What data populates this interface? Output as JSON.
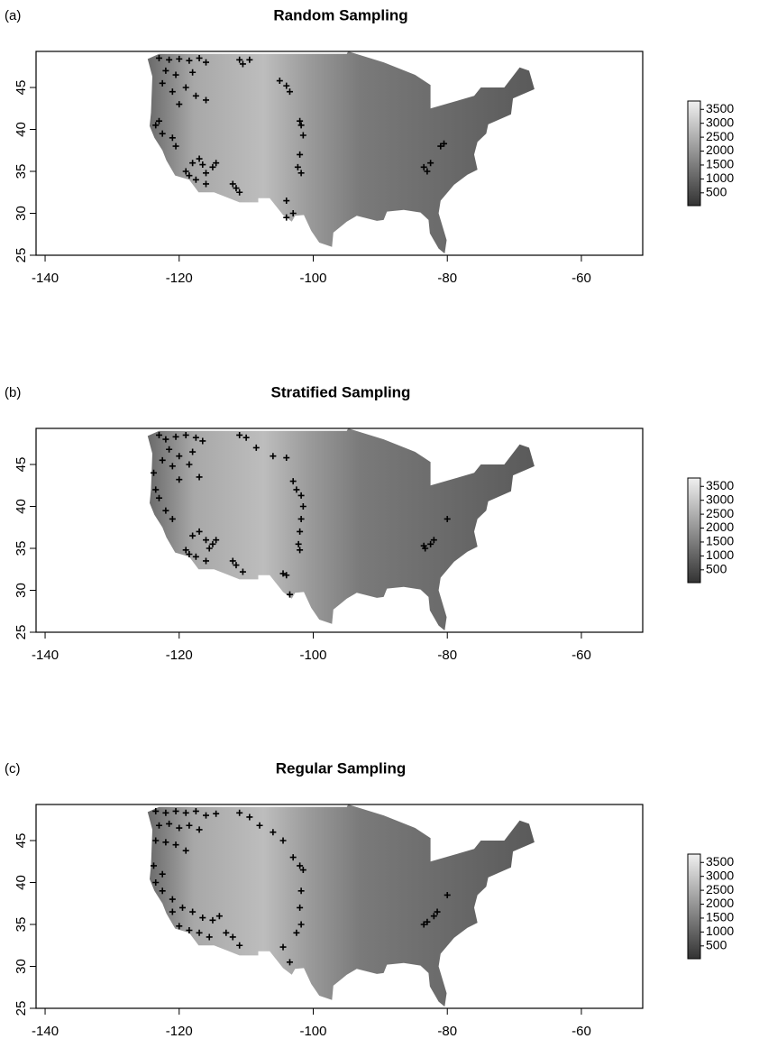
{
  "chart_data": [
    {
      "type": "scatter",
      "panel_label": "(a)",
      "title": "Random Sampling",
      "marker": "+",
      "color": "#000000",
      "x": [
        -123,
        -121.5,
        -120,
        -118.5,
        -117,
        -116,
        -122,
        -120.5,
        -118,
        -122.5,
        -121,
        -119,
        -117.5,
        -116,
        -120,
        -111,
        -110.5,
        -109.5,
        -105,
        -104,
        -103.5,
        -102,
        -101.8,
        -101.5,
        -102,
        -102.3,
        -101.8,
        -104,
        -104,
        -103,
        -123.5,
        -123,
        -122.5,
        -121,
        -120.5,
        -118,
        -117,
        -116.5,
        -115,
        -119,
        -118.5,
        -117.5,
        -116,
        -111.5,
        -111,
        -112,
        -114.5,
        -116,
        -80.5,
        -81,
        -82.5,
        -83.5,
        -83
      ],
      "y": [
        48.5,
        48.3,
        48.4,
        48.2,
        48.5,
        48,
        47,
        46.5,
        46.8,
        45.5,
        44.5,
        45,
        44,
        43.5,
        43,
        48.3,
        47.8,
        48.3,
        45.8,
        45.2,
        44.5,
        41,
        40.5,
        39.3,
        37,
        35.5,
        34.8,
        31.5,
        29.5,
        30,
        40.5,
        41,
        39.5,
        39,
        38,
        36,
        36.5,
        35.8,
        35.5,
        35,
        34.5,
        34,
        33.5,
        33,
        32.5,
        33.5,
        36,
        34.8,
        38.3,
        38,
        36,
        35.5,
        35
      ],
      "xlim": [
        -141.35,
        -50.85
      ],
      "ylim": [
        25,
        49.3
      ],
      "xticks": [
        -140,
        -120,
        -100,
        -80,
        -60
      ],
      "yticks": [
        25,
        30,
        35,
        40,
        45
      ],
      "colorbar": {
        "lim": [
          40,
          3800
        ],
        "ticks": [
          500,
          1000,
          1500,
          2000,
          2500,
          3000,
          3500
        ]
      }
    },
    {
      "type": "scatter",
      "panel_label": "(b)",
      "title": "Stratified Sampling",
      "marker": "+",
      "color": "#000000",
      "x": [
        -123,
        -122,
        -120.5,
        -119,
        -117.5,
        -116.5,
        -121.5,
        -120,
        -118,
        -122.5,
        -121,
        -118.5,
        -117,
        -120,
        -111,
        -110,
        -108.5,
        -106,
        -104,
        -103,
        -102.5,
        -101.8,
        -101.5,
        -101.8,
        -102,
        -102.2,
        -102,
        -104.5,
        -104,
        -103.5,
        -123.8,
        -123.5,
        -123,
        -122,
        -121,
        -118,
        -117,
        -116,
        -115,
        -119,
        -118.5,
        -117.5,
        -116,
        -111.5,
        -110.5,
        -112,
        -114.5,
        -115.5,
        -80,
        -82,
        -82.5,
        -83.5,
        -83.3
      ],
      "y": [
        48.5,
        48,
        48.3,
        48.5,
        48.2,
        47.8,
        46.8,
        46,
        46.5,
        45.5,
        44.8,
        45,
        43.5,
        43.2,
        48.5,
        48.2,
        47,
        46,
        45.8,
        43,
        42,
        41.3,
        40,
        38.5,
        37,
        35.5,
        34.8,
        32,
        31.8,
        29.5,
        44,
        42,
        41,
        39.5,
        38.5,
        36.5,
        37,
        36,
        35.5,
        34.8,
        34.3,
        34,
        33.5,
        33,
        32.2,
        33.5,
        36,
        35,
        38.5,
        36,
        35.5,
        35.3,
        35
      ],
      "xlim": [
        -141.35,
        -50.85
      ],
      "ylim": [
        25,
        49.3
      ],
      "xticks": [
        -140,
        -120,
        -100,
        -80,
        -60
      ],
      "yticks": [
        25,
        30,
        35,
        40,
        45
      ],
      "colorbar": {
        "lim": [
          40,
          3800
        ],
        "ticks": [
          500,
          1000,
          1500,
          2000,
          2500,
          3000,
          3500
        ]
      }
    },
    {
      "type": "scatter",
      "panel_label": "(c)",
      "title": "Regular Sampling",
      "marker": "+",
      "color": "#000000",
      "x": [
        -123.5,
        -122,
        -120.5,
        -119,
        -117.5,
        -116,
        -114.5,
        -123,
        -121.5,
        -120,
        -118.5,
        -117,
        -123.5,
        -122,
        -120.5,
        -119,
        -123.8,
        -122.5,
        -111,
        -109.5,
        -108,
        -106,
        -104.5,
        -103,
        -102,
        -101.5,
        -101.8,
        -102,
        -101.8,
        -102.5,
        -104.5,
        -103.5,
        -123.5,
        -122.5,
        -121,
        -119.5,
        -118,
        -116.5,
        -115,
        -120,
        -118.5,
        -117,
        -115.5,
        -112,
        -111,
        -113,
        -114,
        -121,
        -80,
        -81.5,
        -82,
        -83,
        -83.5
      ],
      "y": [
        48.5,
        48.3,
        48.5,
        48.3,
        48.5,
        48,
        48.2,
        46.8,
        47,
        46.5,
        46.8,
        46.3,
        45,
        44.8,
        44.5,
        43.8,
        42,
        41,
        48.3,
        47.8,
        46.8,
        46,
        45,
        43,
        42,
        41.5,
        39,
        37,
        35,
        34,
        32.3,
        30.5,
        40,
        39,
        38,
        37,
        36.5,
        35.8,
        35.5,
        34.8,
        34.3,
        34,
        33.5,
        33.5,
        32.5,
        34,
        36,
        36.5,
        38.5,
        36.5,
        36,
        35.3,
        35
      ],
      "xlim": [
        -141.35,
        -50.85
      ],
      "ylim": [
        25,
        49.3
      ],
      "xticks": [
        -140,
        -120,
        -100,
        -80,
        -60
      ],
      "yticks": [
        25,
        30,
        35,
        40,
        45
      ],
      "colorbar": {
        "lim": [
          40,
          3800
        ],
        "ticks": [
          500,
          1000,
          1500,
          2000,
          2500,
          3000,
          3500
        ]
      }
    }
  ]
}
